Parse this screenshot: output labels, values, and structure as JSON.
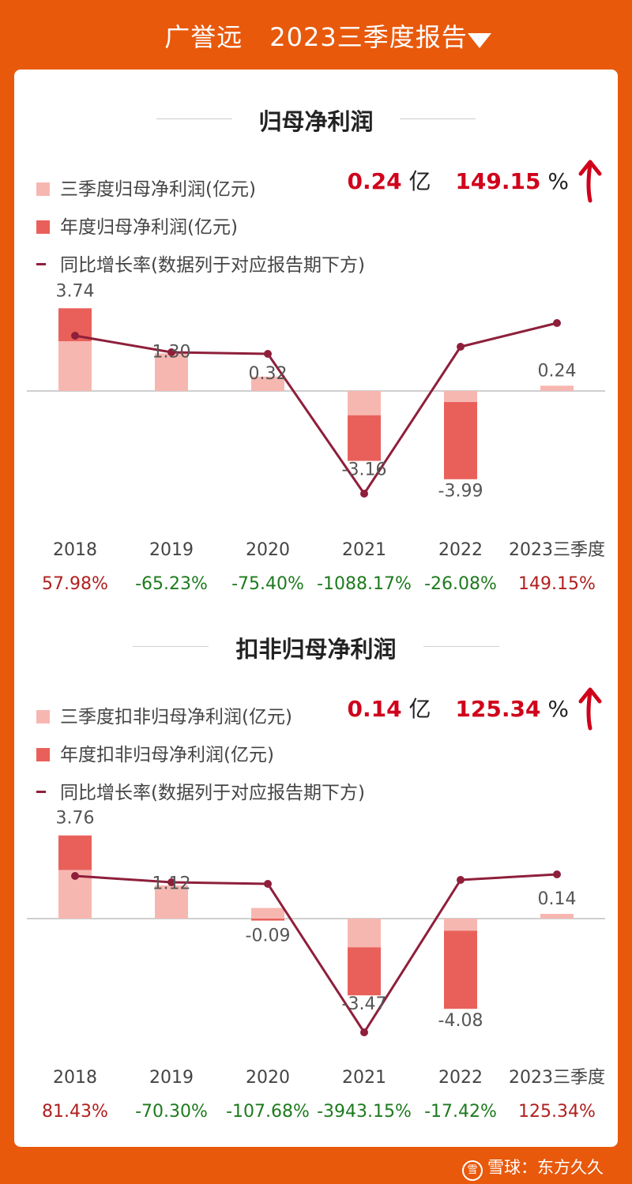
{
  "header": {
    "company": "广誉远",
    "report": "2023三季度报告"
  },
  "charts": [
    {
      "section_title": "归母净利润",
      "legend": {
        "quarterly": "三季度归母净利润(亿元)",
        "annual": "年度归母净利润(亿元)",
        "growth": "同比增长率(数据列于对应报告期下方)"
      },
      "headline": {
        "value": "0.24",
        "unit": "亿",
        "pct": "149.15",
        "pct_unit": "%"
      },
      "colors": {
        "quarterly": "#F7B7B1",
        "annual": "#E9605A",
        "line": "#8E1F3B",
        "positive": "#B0201F",
        "negative": "#1E7A1E"
      },
      "chart_data": {
        "type": "bar",
        "categories": [
          "2018",
          "2019",
          "2020",
          "2021",
          "2022",
          "2023三季度"
        ],
        "series": [
          {
            "name": "三季度归母净利润(亿元)",
            "values": [
              2.25,
              1.7,
              0.65,
              -1.1,
              -0.5,
              0.24
            ]
          },
          {
            "name": "年度归母净利润(亿元)",
            "values": [
              3.74,
              1.3,
              0.32,
              -3.16,
              -3.99,
              null
            ]
          },
          {
            "name": "同比增长率(数据列于对应报告期下方)",
            "values": [
              57.98,
              -65.23,
              -75.4,
              -1088.17,
              -26.08,
              149.15
            ]
          }
        ],
        "value_labels": [
          "3.74",
          "1.30",
          "0.32",
          "-3.16",
          "-3.99",
          "0.24"
        ],
        "growth_labels": [
          "57.98%",
          "-65.23%",
          "-75.40%",
          "-1088.17%",
          "-26.08%",
          "149.15%"
        ]
      }
    },
    {
      "section_title": "扣非归母净利润",
      "legend": {
        "quarterly": "三季度扣非归母净利润(亿元)",
        "annual": "年度扣非归母净利润(亿元)",
        "growth": "同比增长率(数据列于对应报告期下方)"
      },
      "headline": {
        "value": "0.14",
        "unit": "亿",
        "pct": "125.34",
        "pct_unit": "%"
      },
      "colors": {
        "quarterly": "#F7B7B1",
        "annual": "#E9605A",
        "line": "#8E1F3B",
        "positive": "#B0201F",
        "negative": "#1E7A1E"
      },
      "chart_data": {
        "type": "bar",
        "categories": [
          "2018",
          "2019",
          "2020",
          "2021",
          "2022",
          "2023三季度"
        ],
        "series": [
          {
            "name": "三季度扣非归母净利润(亿元)",
            "values": [
              2.2,
              1.5,
              0.48,
              -1.3,
              -0.55,
              0.14
            ]
          },
          {
            "name": "年度扣非归母净利润(亿元)",
            "values": [
              3.76,
              1.12,
              -0.09,
              -3.47,
              -4.08,
              null
            ]
          },
          {
            "name": "同比增长率(数据列于对应报告期下方)",
            "values": [
              81.43,
              -70.3,
              -107.68,
              -3943.15,
              -17.42,
              125.34
            ]
          }
        ],
        "value_labels": [
          "3.76",
          "1.12",
          "-0.09",
          "-3.47",
          "-4.08",
          "0.14"
        ],
        "growth_labels": [
          "81.43%",
          "-70.30%",
          "-107.68%",
          "-3943.15%",
          "-17.42%",
          "125.34%"
        ]
      }
    }
  ],
  "watermark": {
    "logo": "雪",
    "text": "雪球：东方久久"
  }
}
